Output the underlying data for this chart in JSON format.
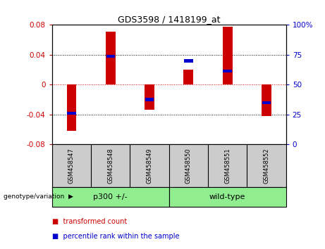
{
  "title": "GDS3598 / 1418199_at",
  "samples": [
    "GSM458547",
    "GSM458548",
    "GSM458549",
    "GSM458550",
    "GSM458551",
    "GSM458552"
  ],
  "red_values": [
    -0.062,
    0.071,
    -0.034,
    0.02,
    0.078,
    -0.042
  ],
  "blue_values": [
    -0.038,
    0.038,
    -0.02,
    0.032,
    0.018,
    -0.024
  ],
  "group_label": "genotype/variation",
  "group_defs": [
    {
      "label": "p300 +/-",
      "start": 0,
      "end": 3,
      "color": "#90EE90"
    },
    {
      "label": "wild-type",
      "start": 3,
      "end": 6,
      "color": "#90EE90"
    }
  ],
  "ylim": [
    -0.08,
    0.08
  ],
  "yticks_left": [
    -0.08,
    -0.04,
    0,
    0.04,
    0.08
  ],
  "yticks_right": [
    0,
    25,
    50,
    75,
    100
  ],
  "left_tick_color": "#cc0000",
  "right_tick_color": "#0000cc",
  "bar_color": "#cc0000",
  "dot_color": "#0000cc",
  "legend_items": [
    "transformed count",
    "percentile rank within the sample"
  ],
  "legend_colors": [
    "#cc0000",
    "#0000cc"
  ],
  "background_color": "#ffffff",
  "plot_bg_color": "#ffffff",
  "sample_bg_color": "#cccccc",
  "bar_width": 0.25
}
